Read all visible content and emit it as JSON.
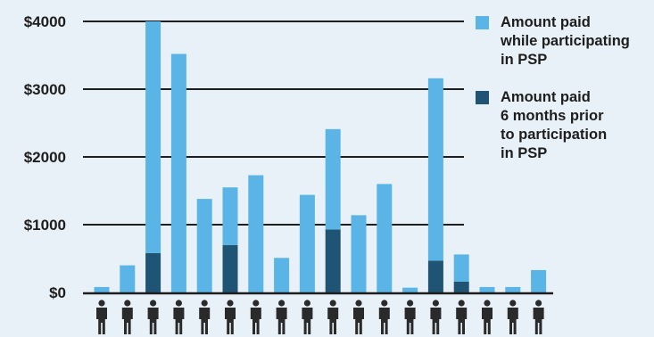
{
  "chart_data": {
    "type": "bar",
    "stacked": true,
    "title": "",
    "xlabel": "",
    "ylabel": "",
    "ylim": [
      0,
      4000
    ],
    "yticks": [
      {
        "value": 0,
        "label": "$0"
      },
      {
        "value": 1000,
        "label": "$1000"
      },
      {
        "value": 2000,
        "label": "$2000"
      },
      {
        "value": 3000,
        "label": "$3000"
      },
      {
        "value": 4000,
        "label": "$4000"
      }
    ],
    "grid": true,
    "legend_position": "right",
    "category_icon": "person-icon",
    "categories_count": 18,
    "series": [
      {
        "name": "Amount paid 6 months prior to participation in PSP",
        "legend_lines": [
          "Amount paid",
          "6 months prior",
          "to participation",
          "in PSP"
        ],
        "color": "#1f5474",
        "values": [
          0,
          0,
          580,
          0,
          0,
          700,
          0,
          0,
          0,
          930,
          0,
          0,
          0,
          470,
          160,
          0,
          0,
          0
        ]
      },
      {
        "name": "Amount paid while participating in PSP",
        "legend_lines": [
          "Amount paid",
          "while participating",
          "in PSP"
        ],
        "color": "#5ab4e5",
        "values": [
          80,
          400,
          3420,
          3520,
          1380,
          850,
          1730,
          510,
          1440,
          1480,
          1140,
          1600,
          70,
          2690,
          400,
          80,
          80,
          330
        ]
      }
    ],
    "colors": {
      "axis": "#1e1e1e",
      "text": "#1d1d1d",
      "background": "#e9f1f8",
      "icon": "#2a2a2a"
    }
  }
}
